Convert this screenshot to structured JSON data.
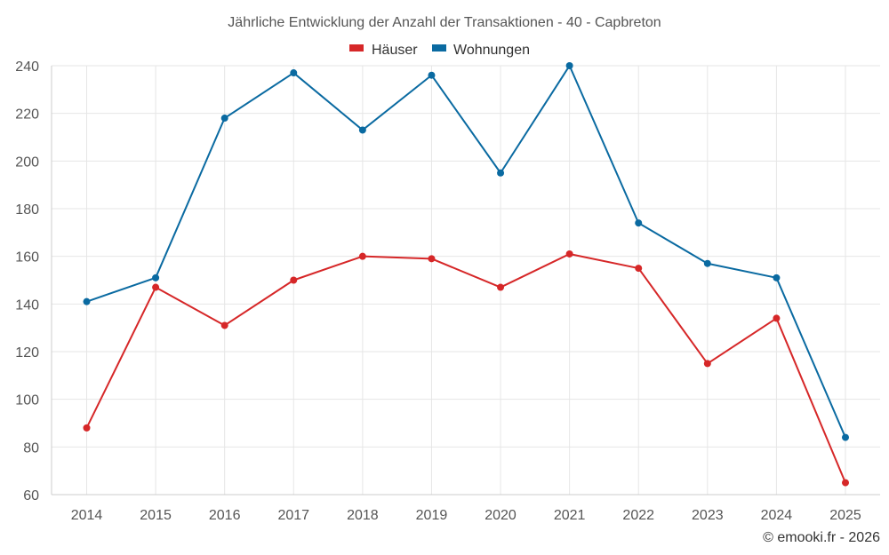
{
  "chart_data": {
    "type": "line",
    "title": "Jährliche Entwicklung der Anzahl der Transaktionen - 40 - Capbreton",
    "xlabel": "",
    "ylabel": "",
    "categories": [
      "2014",
      "2015",
      "2016",
      "2017",
      "2018",
      "2019",
      "2020",
      "2021",
      "2022",
      "2023",
      "2024",
      "2025"
    ],
    "ylim": [
      60,
      240
    ],
    "yticks": [
      60,
      80,
      100,
      120,
      140,
      160,
      180,
      200,
      220,
      240
    ],
    "grid": true,
    "legend_position": "top-center",
    "series": [
      {
        "name": "Häuser",
        "color": "#d62728",
        "values": [
          88,
          147,
          131,
          150,
          160,
          159,
          147,
          161,
          155,
          115,
          134,
          65
        ]
      },
      {
        "name": "Wohnungen",
        "color": "#0a6aa1",
        "values": [
          141,
          151,
          218,
          237,
          213,
          236,
          195,
          240,
          174,
          157,
          151,
          84
        ]
      }
    ],
    "credit": "© emooki.fr - 2026"
  }
}
